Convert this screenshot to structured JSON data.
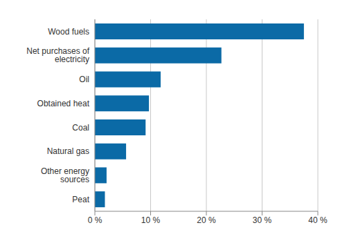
{
  "chart_data": {
    "type": "bar",
    "orientation": "horizontal",
    "categories": [
      "Wood fuels",
      "Net purchases of electricity",
      "Oil",
      "Obtained heat",
      "Coal",
      "Natural gas",
      "Other energy sources",
      "Peat"
    ],
    "values": [
      37.5,
      22.7,
      11.8,
      9.7,
      9.1,
      5.6,
      2.1,
      1.8
    ],
    "color": "#0b6aa6",
    "xlim": [
      0,
      40
    ],
    "xticks": [
      {
        "value": 0,
        "label": "0 %"
      },
      {
        "value": 10,
        "label": "10 %"
      },
      {
        "value": 20,
        "label": "20 %"
      },
      {
        "value": 30,
        "label": "30 %"
      },
      {
        "value": 40,
        "label": "40 %"
      }
    ],
    "grid": true
  }
}
